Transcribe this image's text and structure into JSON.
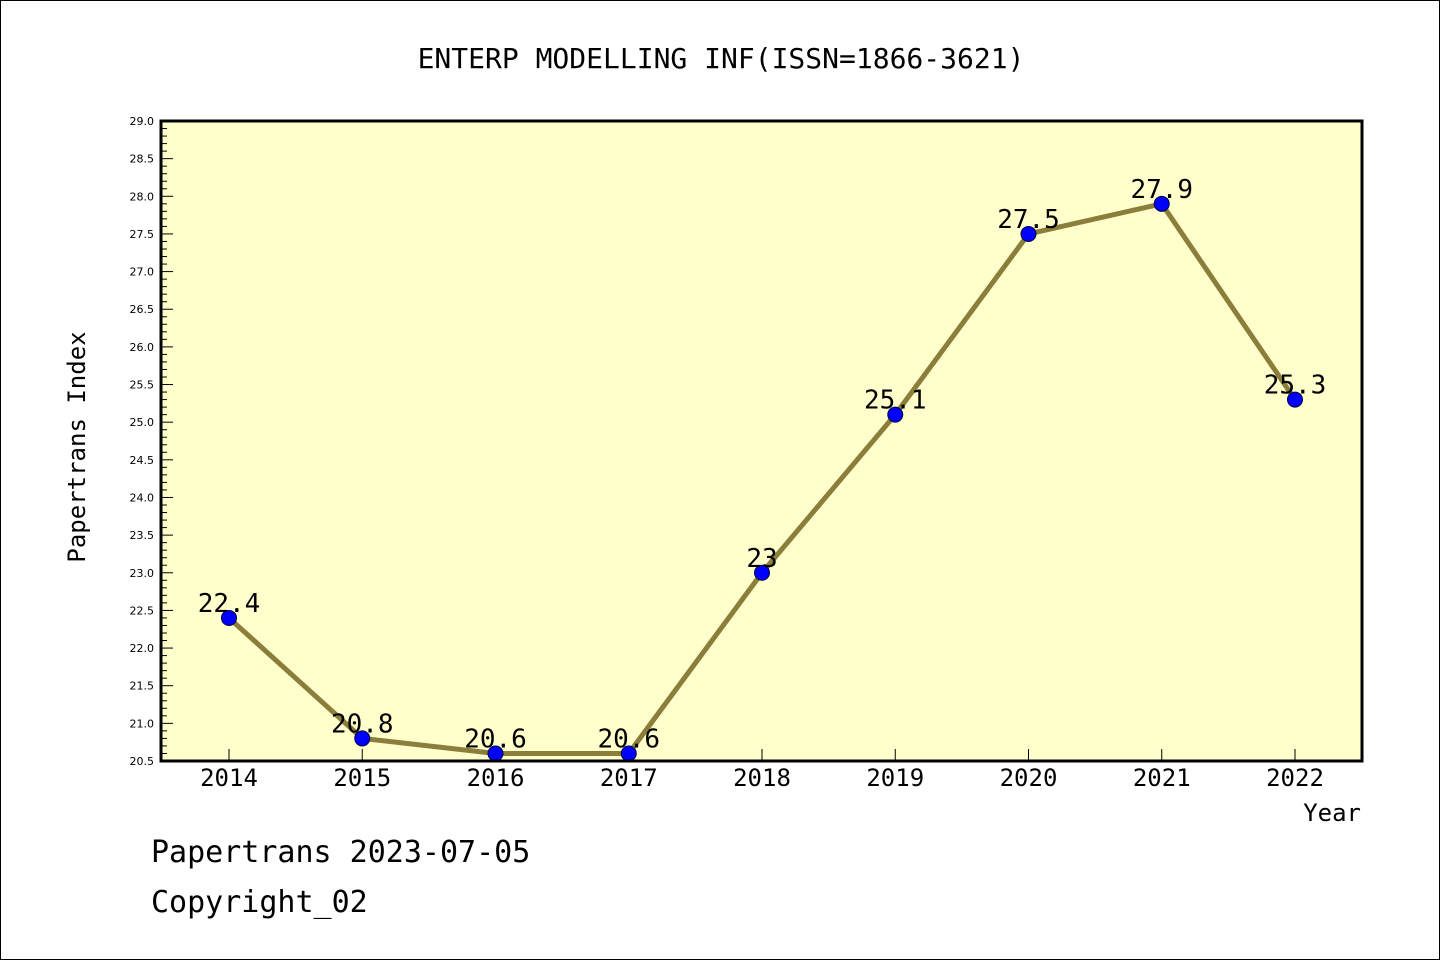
{
  "chart_data": {
    "type": "line",
    "title": "ENTERP MODELLING INF(ISSN=1866-3621)",
    "xlabel": "Year",
    "ylabel": "Papertrans Index",
    "categories": [
      "2014",
      "2015",
      "2016",
      "2017",
      "2018",
      "2019",
      "2020",
      "2021",
      "2022"
    ],
    "series": [
      {
        "values": [
          22.4,
          20.8,
          20.6,
          20.6,
          23.0,
          25.1,
          27.5,
          27.9,
          25.3
        ],
        "data_labels": [
          "22.4",
          "20.8",
          "20.6",
          "20.6",
          "23",
          "25.1",
          "27.5",
          "27.9",
          "25.3"
        ]
      }
    ],
    "ylim": [
      20.5,
      29.0
    ],
    "yticks": [
      "20.5",
      "21.0",
      "21.5",
      "22.0",
      "22.5",
      "23.0",
      "23.5",
      "24.0",
      "24.5",
      "25.0",
      "25.5",
      "26.0",
      "26.5",
      "27.0",
      "27.5",
      "28.0",
      "28.5",
      "29.0"
    ],
    "grid": false,
    "colors": {
      "plot_background": "#ffffcc",
      "line": "#8b7d3a",
      "marker": "#0000ff"
    }
  },
  "footer": {
    "line1": "Papertrans 2023-07-05",
    "line2": "Copyright_02"
  }
}
